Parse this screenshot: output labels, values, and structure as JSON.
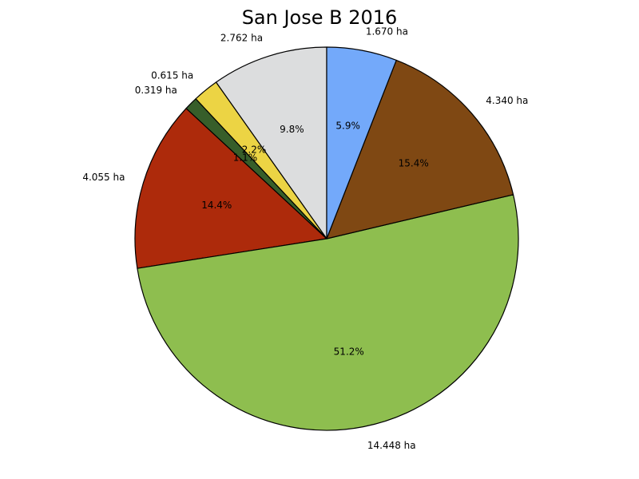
{
  "chart_data": {
    "type": "pie",
    "title": "San Jose B 2016",
    "slices": [
      {
        "value": 2.762,
        "label": "2.762 ha",
        "pct_label": "9.8%",
        "color": "#dcddde"
      },
      {
        "value": 0.615,
        "label": "0.615 ha",
        "pct_label": "2.2%",
        "color": "#ecd444"
      },
      {
        "value": 0.319,
        "label": "0.319 ha",
        "pct_label": "1.1%",
        "color": "#375e2a"
      },
      {
        "value": 4.055,
        "label": "4.055 ha",
        "pct_label": "14.4%",
        "color": "#ad2a0b"
      },
      {
        "value": 14.448,
        "label": "14.448 ha",
        "pct_label": "51.2%",
        "color": "#8ebe4f"
      },
      {
        "value": 4.34,
        "label": "4.340 ha",
        "pct_label": "15.4%",
        "color": "#7f4813"
      },
      {
        "value": 1.67,
        "label": "1.670 ha",
        "pct_label": "5.9%",
        "color": "#73a9fa"
      }
    ],
    "start_angle_deg": 90,
    "direction": "counterclockwise"
  }
}
